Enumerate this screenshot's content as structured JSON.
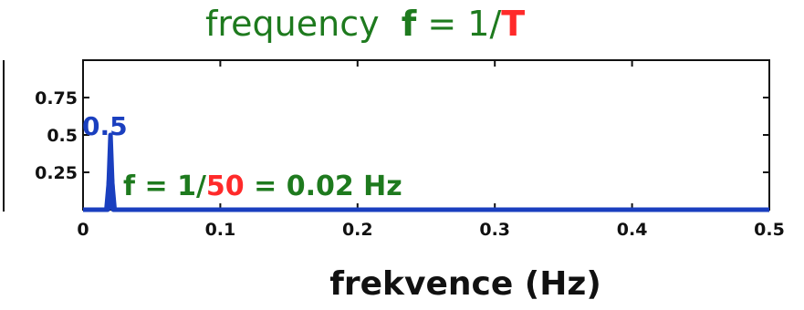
{
  "title": {
    "prefix": "frequency",
    "f": "f",
    "eq": " = 1/",
    "T": "T"
  },
  "annotation": {
    "f_part": "f = 1/",
    "num": "50",
    "rest": " = 0.02 Hz"
  },
  "peak_label": "0.5",
  "colors": {
    "series": "#1a3fbf",
    "title_green": "#1e7a1e",
    "accent_red": "#ff2a2a"
  },
  "chart_data": {
    "type": "line",
    "xlabel": "frekvence (Hz)",
    "ylabel": "",
    "xlim": [
      0,
      0.5
    ],
    "ylim": [
      0,
      1
    ],
    "x_ticks": [
      "0",
      "0.1",
      "0.2",
      "0.3",
      "0.4",
      "0.5"
    ],
    "x_tick_values": [
      0,
      0.1,
      0.2,
      0.3,
      0.4,
      0.5
    ],
    "y_ticks": [
      "0.25",
      "0.5",
      "0.75"
    ],
    "y_tick_values": [
      0.25,
      0.5,
      0.75
    ],
    "series": [
      {
        "x": [
          0,
          0.018,
          0.02,
          0.022,
          0.5
        ],
        "values": [
          0,
          0,
          0.5,
          0,
          0
        ]
      }
    ]
  }
}
